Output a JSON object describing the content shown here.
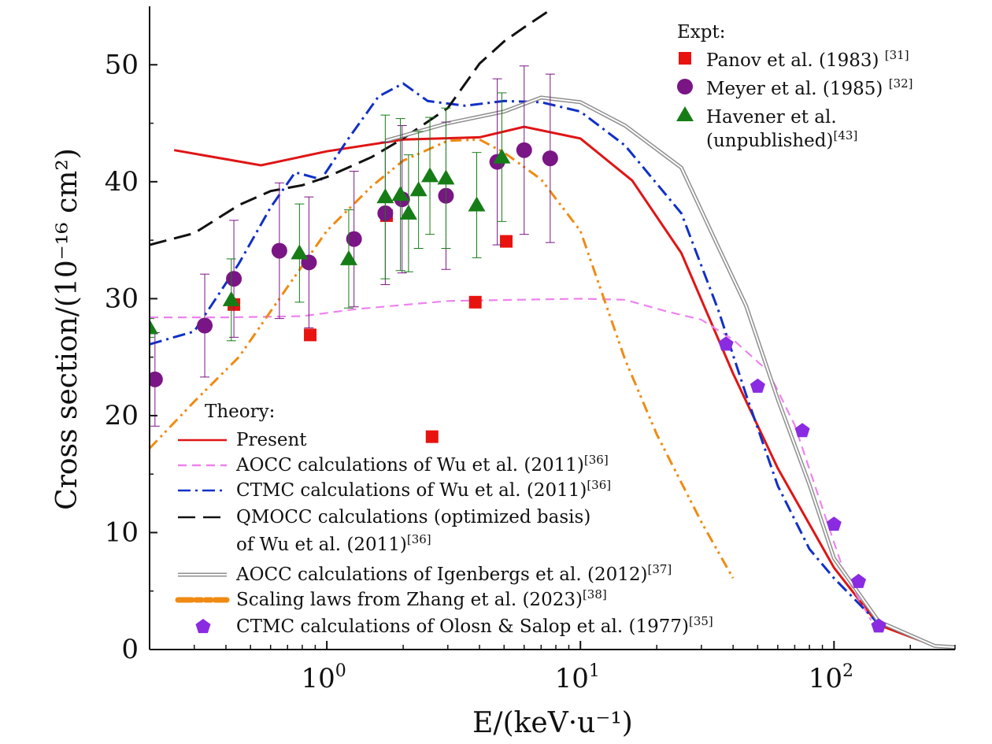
{
  "chart_data": {
    "type": "scatter",
    "xscale": "log",
    "xlim": [
      0.2,
      300
    ],
    "ylim": [
      0,
      55
    ],
    "xlabel": "E/(keV·u⁻¹)",
    "ylabel": "Cross section/(10⁻¹⁶ cm²)",
    "x_tick_labels": [
      {
        "x": 1,
        "label": "10⁰"
      },
      {
        "x": 10,
        "label": "10¹"
      },
      {
        "x": 100,
        "label": "10²"
      }
    ],
    "y_tick_labels": [
      {
        "y": 0,
        "label": "0"
      },
      {
        "y": 10,
        "label": "10"
      },
      {
        "y": 20,
        "label": "20"
      },
      {
        "y": 30,
        "label": "30"
      },
      {
        "y": 40,
        "label": "40"
      },
      {
        "y": 50,
        "label": "50"
      }
    ],
    "legend_expt_heading": "Expt:",
    "legend_theory_heading": "Theory:",
    "experiments": [
      {
        "name": "Panov et al. (1983)",
        "ref": "[31]",
        "marker": "square",
        "color": "#e8130f",
        "points": [
          {
            "x": 0.43,
            "y": 29.5
          },
          {
            "x": 0.86,
            "y": 26.9
          },
          {
            "x": 1.72,
            "y": 37.1
          },
          {
            "x": 2.6,
            "y": 18.2
          },
          {
            "x": 3.85,
            "y": 29.7
          },
          {
            "x": 5.1,
            "y": 34.9
          }
        ]
      },
      {
        "name": "Meyer et al. (1985)",
        "ref": "[32]",
        "marker": "circle",
        "color": "#7a1585",
        "points": [
          {
            "x": 0.21,
            "y": 23.1,
            "err": 4.0
          },
          {
            "x": 0.33,
            "y": 27.7,
            "err": 4.4
          },
          {
            "x": 0.43,
            "y": 31.7,
            "err": 5.0
          },
          {
            "x": 0.65,
            "y": 34.1,
            "err": 5.8
          },
          {
            "x": 0.85,
            "y": 33.1,
            "err": 5.6
          },
          {
            "x": 1.28,
            "y": 35.1,
            "err": 5.8
          },
          {
            "x": 1.7,
            "y": 37.3,
            "err": 6.1
          },
          {
            "x": 1.98,
            "y": 38.5,
            "err": 6.3
          },
          {
            "x": 2.95,
            "y": 38.8,
            "err": 6.3
          },
          {
            "x": 4.7,
            "y": 41.7,
            "err": 7.1
          },
          {
            "x": 6.0,
            "y": 42.7,
            "err": 7.2
          },
          {
            "x": 7.6,
            "y": 42.0,
            "err": 7.2
          }
        ]
      },
      {
        "name": "Havener et al.",
        "name_line2": "(unpublished)",
        "ref": "[43]",
        "marker": "triangle",
        "color": "#167d16",
        "points": [
          {
            "x": 0.2,
            "y": 27.5,
            "err": 0.8
          },
          {
            "x": 0.42,
            "y": 29.9,
            "err": 3.5
          },
          {
            "x": 0.78,
            "y": 33.9,
            "err": 4.2
          },
          {
            "x": 1.22,
            "y": 33.4,
            "err": 4.2
          },
          {
            "x": 1.7,
            "y": 38.7,
            "err": 7.0
          },
          {
            "x": 1.95,
            "y": 38.9,
            "err": 6.5
          },
          {
            "x": 2.1,
            "y": 37.3,
            "err": 5.0
          },
          {
            "x": 2.3,
            "y": 39.3,
            "err": 5.0
          },
          {
            "x": 2.55,
            "y": 40.5,
            "err": 5.0
          },
          {
            "x": 2.95,
            "y": 40.3,
            "err": 6.0
          },
          {
            "x": 3.9,
            "y": 38.0,
            "err": 4.5
          },
          {
            "x": 4.9,
            "y": 42.1,
            "err": 5.5
          }
        ]
      }
    ],
    "theory": [
      {
        "name": "Present",
        "ref": "",
        "style": "solid",
        "color": "#e01515",
        "x": [
          0.25,
          0.55,
          1.0,
          2.0,
          4.0,
          6.0,
          10,
          16,
          25,
          40,
          60,
          100,
          150,
          230
        ],
        "y": [
          42.7,
          41.4,
          42.6,
          43.6,
          43.8,
          44.7,
          43.7,
          40.1,
          33.9,
          23.6,
          15.5,
          7.0,
          2.1,
          0.6
        ]
      },
      {
        "name": "AOCC calculations of Wu et al. (2011)",
        "ref": "[36]",
        "style": "dashed",
        "color": "#ee82ee",
        "x": [
          0.2,
          0.4,
          0.8,
          1.3,
          3.0,
          10,
          15,
          22,
          30,
          40,
          55,
          70,
          90,
          110,
          140
        ],
        "y": [
          28.4,
          28.4,
          28.5,
          29.1,
          29.8,
          30.0,
          29.9,
          28.9,
          28.2,
          26.5,
          23.8,
          19.2,
          12.1,
          6.5,
          2.5
        ]
      },
      {
        "name": "CTMC calculations of Wu et al. (2011)",
        "ref": "[36]",
        "style": "dashdot",
        "color": "#1030c8",
        "x": [
          0.2,
          0.3,
          0.45,
          0.6,
          0.75,
          0.95,
          1.2,
          1.6,
          2.0,
          2.5,
          3.5,
          5.0,
          7.0,
          10,
          15,
          25,
          35,
          45,
          60,
          80,
          100,
          150
        ],
        "y": [
          26.1,
          27.2,
          33.0,
          37.8,
          40.8,
          40.2,
          43.5,
          47.3,
          48.4,
          46.9,
          46.5,
          46.9,
          46.8,
          46.0,
          43.1,
          37.3,
          29.0,
          21.8,
          14.0,
          8.6,
          6.1,
          2.2
        ]
      },
      {
        "name": "QMOCC calculations (optimized basis)",
        "name_line2": "of Wu et al. (2011)",
        "ref": "[36]",
        "style": "longdash",
        "color": "#111111",
        "x": [
          0.2,
          0.3,
          0.45,
          0.6,
          0.8,
          1.0,
          1.5,
          2.0,
          3.0,
          4.0,
          5.0,
          6.0,
          7.5
        ],
        "y": [
          34.6,
          35.6,
          38.0,
          39.2,
          39.7,
          40.4,
          42.1,
          43.7,
          46.3,
          50.1,
          52.0,
          53.2,
          54.6
        ]
      },
      {
        "name": "AOCC calculations of Igenbergs et al. (2012)",
        "ref": "[37]",
        "style": "double",
        "color": "#8f8f8f",
        "x": [
          1.7,
          3.0,
          5.0,
          7.0,
          10,
          15,
          25,
          35,
          45,
          60,
          80,
          100,
          150,
          250,
          300
        ],
        "y": [
          43.5,
          45.0,
          46.0,
          47.2,
          46.8,
          44.8,
          41.2,
          34.4,
          29.4,
          21.4,
          14.1,
          7.8,
          2.4,
          0.3,
          0.2
        ]
      },
      {
        "name": "Scaling laws from Zhang et al. (2023)",
        "ref": "[38]",
        "style": "dashdotdot",
        "color": "#f08a12",
        "x": [
          0.2,
          0.3,
          0.45,
          0.7,
          1.0,
          1.5,
          2.0,
          3.0,
          4.0,
          5.0,
          7.0,
          10,
          15,
          20,
          30,
          40
        ],
        "y": [
          17.2,
          21.2,
          25.0,
          31.0,
          35.8,
          39.6,
          41.8,
          43.5,
          43.6,
          42.5,
          40.2,
          35.8,
          24.8,
          18.4,
          10.9,
          6.1
        ]
      },
      {
        "name": "CTMC calculations of Olosn & Salop et al. (1977)",
        "ref": "[35]",
        "style": "pentagon",
        "color": "#8a2be2",
        "x": [
          37.5,
          50,
          75,
          100,
          125,
          150
        ],
        "y": [
          26.1,
          22.5,
          18.7,
          10.7,
          5.8,
          2.0
        ]
      }
    ]
  }
}
